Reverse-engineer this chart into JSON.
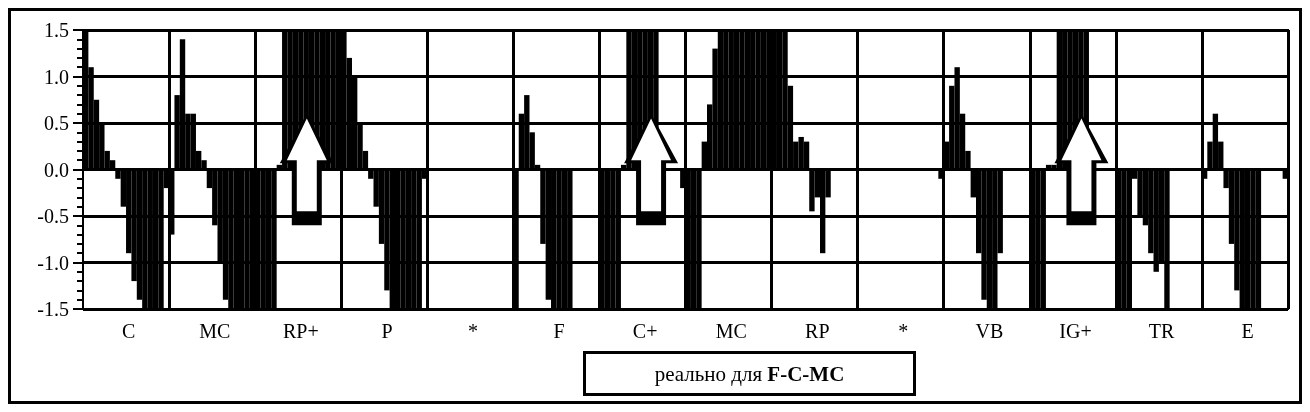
{
  "chart_data": {
    "type": "bar",
    "color": "#000000",
    "grid": true,
    "ylim": [
      -1.5,
      1.5
    ],
    "yticks": [
      -1.5,
      {
        "value": -1,
        "label": "-1.0"
      },
      -0.5,
      {
        "value": 0,
        "label": "0.0"
      },
      0.5,
      {
        "value": 1,
        "label": "1.0"
      },
      1.5
    ],
    "annotations": [
      "реально для F-C-MC"
    ],
    "categories": [
      null,
      null,
      null,
      null,
      null,
      null,
      null,
      null,
      "C",
      null,
      null,
      null,
      null,
      null,
      null,
      null,
      null,
      null,
      null,
      null,
      null,
      null,
      null,
      null,
      "MC",
      null,
      null,
      null,
      null,
      null,
      null,
      null,
      null,
      null,
      null,
      null,
      null,
      null,
      null,
      null,
      "RP+",
      null,
      null,
      null,
      null,
      null,
      null,
      null,
      null,
      null,
      null,
      null,
      null,
      null,
      null,
      null,
      "P",
      null,
      null,
      null,
      null,
      null,
      null,
      null,
      null,
      null,
      null,
      null,
      null,
      null,
      null,
      null,
      "*",
      null,
      null,
      null,
      null,
      null,
      null,
      null,
      null,
      null,
      null,
      null,
      null,
      null,
      null,
      null,
      "F",
      null,
      null,
      null,
      null,
      null,
      null,
      null,
      null,
      null,
      null,
      null,
      null,
      null,
      null,
      null,
      "C+",
      null,
      null,
      null,
      null,
      null,
      null,
      null,
      null,
      null,
      null,
      null,
      null,
      null,
      null,
      null,
      "MC",
      null,
      null,
      null,
      null,
      null,
      null,
      null,
      null,
      null,
      null,
      null,
      null,
      null,
      null,
      null,
      "RP",
      null,
      null,
      null,
      null,
      null,
      null,
      null,
      null,
      null,
      null,
      null,
      null,
      null,
      null,
      null,
      "*",
      null,
      null,
      null,
      null,
      null,
      null,
      null,
      null,
      null,
      null,
      null,
      null,
      null,
      null,
      null,
      "VB",
      null,
      null,
      null,
      null,
      null,
      null,
      null,
      null,
      null,
      null,
      null,
      null,
      null,
      null,
      null,
      "IG+",
      null,
      null,
      null,
      null,
      null,
      null,
      null,
      null,
      null,
      null,
      null,
      null,
      null,
      null,
      null,
      "TR",
      null,
      null,
      null,
      null,
      null,
      null,
      null,
      null,
      null,
      null,
      null,
      null,
      null,
      null,
      null,
      "E",
      null,
      null,
      null,
      null,
      null,
      null,
      null
    ],
    "values": [
      1.5,
      1.1,
      0.75,
      0.5,
      0.2,
      0.1,
      -0.1,
      -0.4,
      -0.9,
      -1.2,
      -1.4,
      -1.5,
      -1.5,
      -1.5,
      -1.5,
      -0.2,
      -0.7,
      0.8,
      1.4,
      0.6,
      0.6,
      0.2,
      0.1,
      -0.2,
      -0.6,
      -1.0,
      -1.4,
      -1.5,
      -1.5,
      -1.5,
      -1.5,
      -1.5,
      -1.5,
      -1.5,
      -1.5,
      -1.5,
      0.05,
      1.5,
      1.5,
      1.5,
      1.5,
      1.5,
      1.5,
      1.5,
      1.5,
      1.5,
      1.5,
      1.5,
      1.5,
      1.2,
      1.0,
      0.5,
      0.2,
      -0.1,
      -0.4,
      -0.8,
      -1.3,
      -1.5,
      -1.5,
      -1.5,
      -1.5,
      -1.5,
      -1.5,
      -0.1,
      null,
      null,
      null,
      null,
      null,
      null,
      null,
      null,
      null,
      null,
      null,
      null,
      null,
      null,
      null,
      null,
      -1.5,
      0.6,
      0.8,
      0.4,
      0.05,
      -0.8,
      -1.4,
      -1.5,
      -1.5,
      -1.5,
      -1.5,
      null,
      null,
      null,
      null,
      null,
      -1.5,
      -1.5,
      -1.5,
      -1.5,
      0.05,
      1.5,
      1.5,
      1.5,
      1.5,
      1.5,
      1.5,
      null,
      null,
      null,
      null,
      -0.2,
      -1.5,
      -1.5,
      -1.5,
      0.3,
      0.7,
      1.3,
      1.5,
      1.5,
      1.5,
      1.5,
      1.5,
      1.5,
      1.5,
      1.5,
      1.5,
      1.5,
      1.5,
      1.5,
      1.5,
      0.9,
      0.3,
      0.35,
      0.3,
      -0.45,
      -0.3,
      -0.9,
      -0.3,
      null,
      null,
      null,
      null,
      null,
      null,
      null,
      null,
      null,
      null,
      null,
      null,
      null,
      null,
      null,
      null,
      null,
      null,
      null,
      null,
      -0.1,
      0.3,
      0.9,
      1.1,
      0.6,
      0.2,
      -0.3,
      -0.9,
      -1.4,
      -1.5,
      -1.5,
      -0.9,
      null,
      null,
      null,
      null,
      null,
      -1.5,
      -1.5,
      -1.5,
      0.05,
      0.05,
      1.5,
      1.5,
      1.5,
      1.5,
      1.5,
      1.5,
      null,
      null,
      null,
      null,
      null,
      -1.5,
      -1.5,
      -1.5,
      -0.1,
      -0.5,
      -0.6,
      -0.9,
      -1.1,
      -1.0,
      -1.5,
      null,
      null,
      null,
      null,
      null,
      null,
      -0.1,
      0.3,
      0.6,
      0.3,
      -0.2,
      -0.8,
      -1.3,
      -1.5,
      -1.5,
      -1.5,
      -1.5,
      null,
      null,
      null,
      null,
      -0.1
    ]
  }
}
